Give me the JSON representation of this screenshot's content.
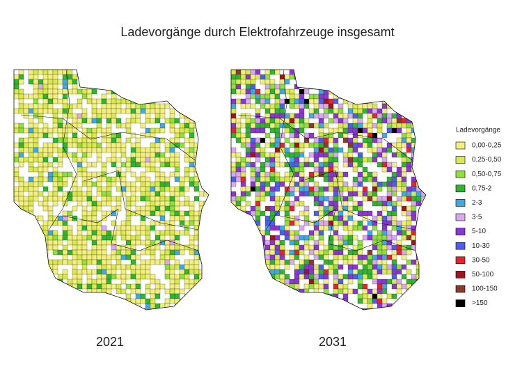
{
  "title": "Ladevorgänge durch Elektrofahrzeuge insgesamt",
  "maps": [
    {
      "label": "2021"
    },
    {
      "label": "2031"
    }
  ],
  "legend": {
    "title": "Ladevorgänge",
    "items": [
      {
        "label": "0,00-0,25",
        "color": "#f2f07a"
      },
      {
        "label": "0,25-0,50",
        "color": "#d9ea4a"
      },
      {
        "label": "0,50-0,75",
        "color": "#8ee03a"
      },
      {
        "label": "0,75-2",
        "color": "#2fb52f"
      },
      {
        "label": "2-3",
        "color": "#3fa9e6"
      },
      {
        "label": "3-5",
        "color": "#d9a8f0"
      },
      {
        "label": "5-10",
        "color": "#8a35d6"
      },
      {
        "label": "10-30",
        "color": "#4a5ef0"
      },
      {
        "label": "30-50",
        "color": "#e8222a"
      },
      {
        "label": "50-100",
        "color": "#a0141c"
      },
      {
        "label": "100-150",
        "color": "#8a3a2a"
      },
      {
        "label": ">150",
        "color": "#000000"
      }
    ]
  }
}
